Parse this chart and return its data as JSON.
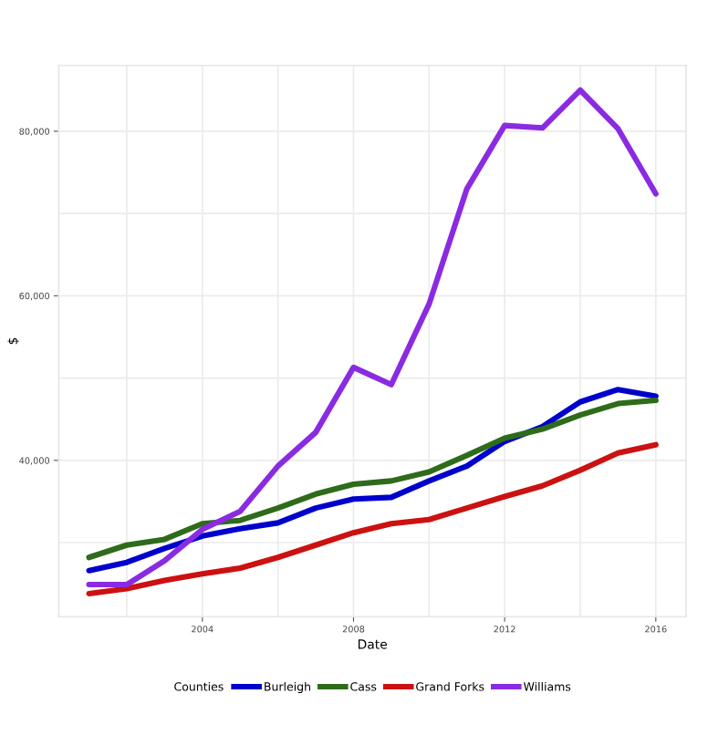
{
  "chart_data": {
    "type": "line",
    "xlabel": "Date",
    "ylabel": "$",
    "legend_title": "Counties",
    "legend": "bottom",
    "grid": true,
    "line_style": "solid",
    "x": [
      2001,
      2002,
      2003,
      2004,
      2005,
      2006,
      2007,
      2008,
      2009,
      2010,
      2011,
      2012,
      2013,
      2014,
      2015,
      2016
    ],
    "xlim": [
      2000.2,
      2016.8
    ],
    "xticks": [
      2004,
      2008,
      2012,
      2016
    ],
    "ylim": [
      21000,
      88000
    ],
    "yticks": [
      {
        "value": 40000,
        "label": "40,000"
      },
      {
        "value": 60000,
        "label": "60,000"
      },
      {
        "value": 80000,
        "label": "80,000"
      }
    ],
    "series": [
      {
        "name": "Burleigh",
        "color": "#0000cc",
        "values": [
          26600,
          27600,
          29300,
          30800,
          31700,
          32400,
          34200,
          35300,
          35500,
          37500,
          39300,
          42300,
          44100,
          47100,
          48600,
          47800
        ]
      },
      {
        "name": "Cass",
        "color": "#2e6b1a",
        "values": [
          28200,
          29700,
          30400,
          32300,
          32700,
          34200,
          35900,
          37100,
          37500,
          38600,
          40600,
          42700,
          43800,
          45500,
          46900,
          47300
        ]
      },
      {
        "name": "Grand Forks",
        "color": "#cc1111",
        "values": [
          23800,
          24400,
          25400,
          26200,
          26900,
          28200,
          29700,
          31200,
          32300,
          32800,
          34200,
          35600,
          36900,
          38800,
          40900,
          41900
        ]
      },
      {
        "name": "Williams",
        "color": "#8a2be2",
        "values": [
          24900,
          24900,
          27800,
          31600,
          33800,
          39300,
          43400,
          51300,
          49200,
          59000,
          73000,
          80700,
          80400,
          85000,
          80300,
          72400
        ]
      }
    ]
  }
}
